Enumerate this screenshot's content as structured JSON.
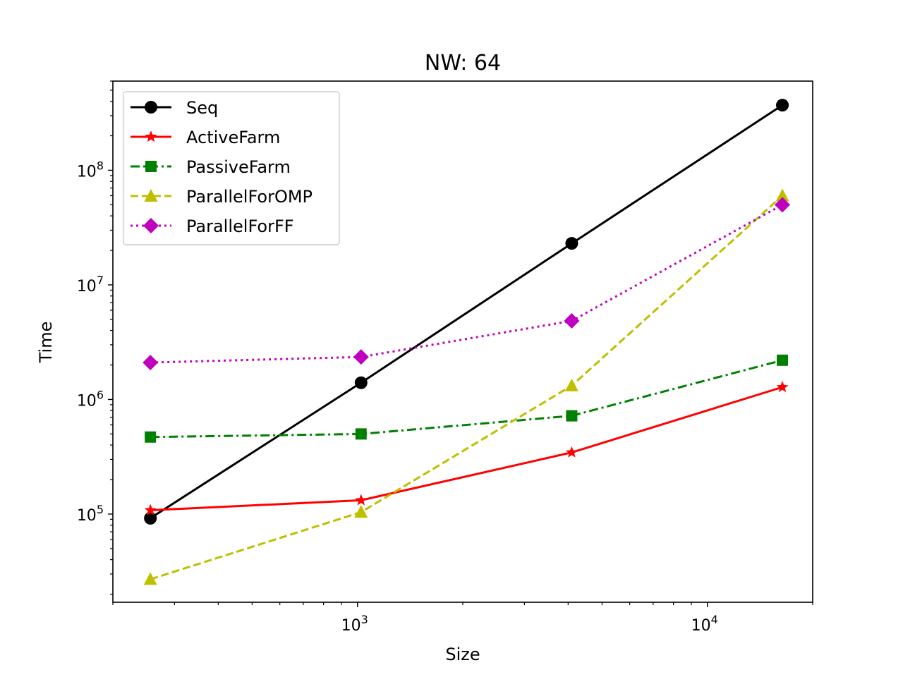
{
  "chart_data": {
    "type": "line",
    "title": "NW: 64",
    "xlabel": "Size",
    "ylabel": "Time",
    "xscale": "log",
    "yscale": "log",
    "xlim": [
      200,
      20000
    ],
    "ylim": [
      17000,
      600000000
    ],
    "x": [
      256,
      1024,
      4096,
      16384
    ],
    "x_ticks": [
      {
        "value": 1000,
        "label": "10",
        "exp": "3"
      },
      {
        "value": 10000,
        "label": "10",
        "exp": "4"
      }
    ],
    "y_ticks": [
      {
        "value": 100000,
        "label": "10",
        "exp": "5"
      },
      {
        "value": 1000000,
        "label": "10",
        "exp": "6"
      },
      {
        "value": 10000000,
        "label": "10",
        "exp": "7"
      },
      {
        "value": 100000000,
        "label": "10",
        "exp": "8"
      }
    ],
    "legend_position": "upper-left",
    "grid": false,
    "series": [
      {
        "name": "Seq",
        "color": "#000000",
        "dash": "solid",
        "marker": "circle",
        "values": [
          92000,
          1400000,
          23000000,
          370000000
        ]
      },
      {
        "name": "ActiveFarm",
        "color": "#ff0000",
        "dash": "solid",
        "marker": "star",
        "values": [
          108000,
          132000,
          345000,
          1280000
        ]
      },
      {
        "name": "PassiveFarm",
        "color": "#008000",
        "dash": "dashdot",
        "marker": "square",
        "values": [
          470000,
          500000,
          720000,
          2200000
        ]
      },
      {
        "name": "ParallelForOMP",
        "color": "#bfbf00",
        "dash": "dashed",
        "marker": "triangle",
        "values": [
          27000,
          104000,
          1320000,
          60000000
        ]
      },
      {
        "name": "ParallelForFF",
        "color": "#bf00bf",
        "dash": "dotted",
        "marker": "diamond",
        "values": [
          2100000,
          2350000,
          4850000,
          50000000
        ]
      }
    ]
  }
}
